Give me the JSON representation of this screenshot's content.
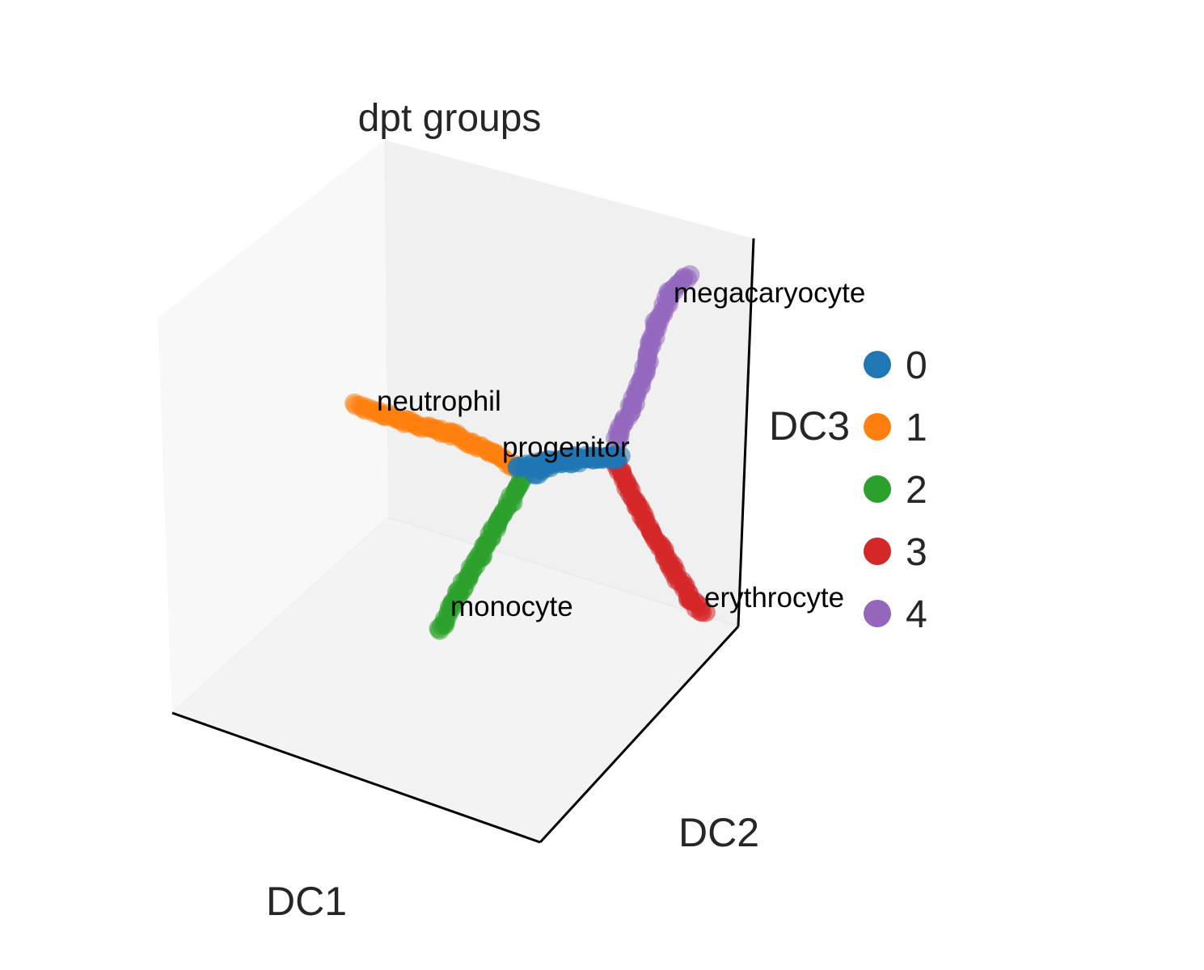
{
  "chart_data": {
    "type": "scatter",
    "title": "dpt groups",
    "axes": {
      "x": "DC1",
      "y": "DC2",
      "z": "DC3"
    },
    "grid": false,
    "legend_position": "right",
    "groups": [
      {
        "name": "0",
        "color": "#1f77b4",
        "label": "progenitor",
        "path": [
          [
            638,
            580
          ],
          [
            700,
            566
          ],
          [
            765,
            566
          ],
          [
            688,
            572
          ],
          [
            660,
            587
          ]
        ]
      },
      {
        "name": "1",
        "color": "#ff7f0e",
        "label": "neutrophil",
        "path": [
          [
            440,
            500
          ],
          [
            500,
            521
          ],
          [
            560,
            538
          ],
          [
            610,
            560
          ],
          [
            636,
            577
          ]
        ]
      },
      {
        "name": "2",
        "color": "#2ca02c",
        "label": "monocyte",
        "path": [
          [
            648,
            590
          ],
          [
            620,
            640
          ],
          [
            592,
            690
          ],
          [
            566,
            738
          ],
          [
            545,
            780
          ]
        ]
      },
      {
        "name": "3",
        "color": "#d62728",
        "label": "erythrocyte",
        "path": [
          [
            762,
            572
          ],
          [
            785,
            620
          ],
          [
            808,
            660
          ],
          [
            833,
            705
          ],
          [
            853,
            740
          ],
          [
            872,
            758
          ]
        ]
      },
      {
        "name": "4",
        "color": "#9467bd",
        "label": "megacaryocyte",
        "path": [
          [
            762,
            548
          ],
          [
            782,
            500
          ],
          [
            800,
            450
          ],
          [
            812,
            400
          ],
          [
            830,
            360
          ],
          [
            853,
            340
          ]
        ]
      }
    ],
    "legend": [
      "0",
      "1",
      "2",
      "3",
      "4"
    ]
  }
}
